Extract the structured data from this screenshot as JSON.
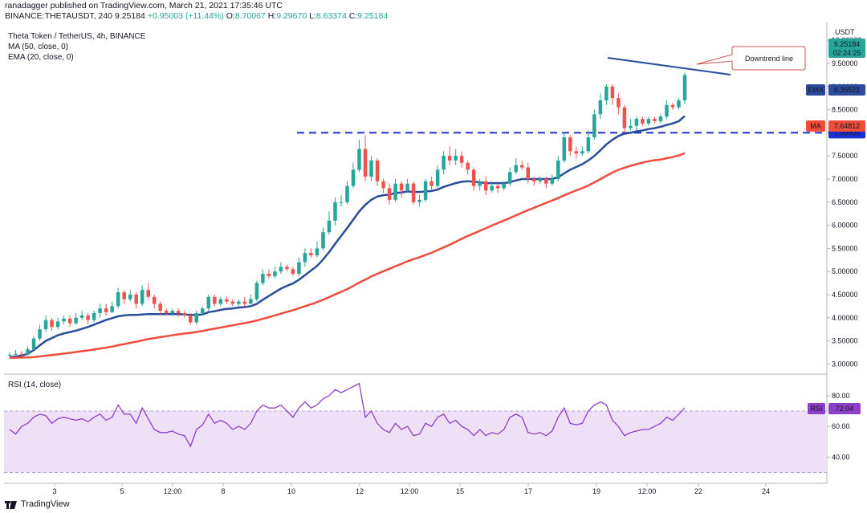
{
  "publish_line": "ranadagger published on TradingView.com, March 21, 2021 17:35:46 UTC",
  "ohlc": {
    "symbol": "BINANCE:THETAUSDT, 240",
    "last": "9.25184",
    "change": "+0.95003 (+11.44%)",
    "o_label": "O:",
    "o": "8.70067",
    "h_label": "H:",
    "h": "9.29670",
    "l_label": "L:",
    "l": "8.63374",
    "c_label": "C:",
    "c": "9.25184"
  },
  "legend": {
    "instrument": "Theta Token / TetherUS, 4h, BINANCE",
    "ma": "MA (50, close, 0)",
    "ema": "EMA (20, close, 0)",
    "rsi": "RSI (14, close)"
  },
  "annotation": {
    "text": "Downtrend line"
  },
  "badges": {
    "price": "9.25184",
    "countdown": "02:24:25",
    "ema_tag": "EMA",
    "ema_value": "8.36521",
    "level_value": "7.99900",
    "ma_tag": "MA",
    "ma_value": "7.64812",
    "rsi_tag": "RSI",
    "rsi_value": "72.04"
  },
  "footer": {
    "brand": "TradingView"
  },
  "colors": {
    "up": "#26a69a",
    "down": "#ef5350",
    "ema": "#2a4c9b",
    "ma": "#f04c3c",
    "level": "#1e2fd4",
    "rsi": "#8e3fc8",
    "rsi_band": "#ede0f7",
    "trendline": "#2a4c9b"
  },
  "chart_data": [
    {
      "type": "candlestick",
      "title": "",
      "y_axis": {
        "currency": "USDT",
        "ticks": [
          "10.00000",
          "9.50000",
          "9.00000",
          "8.50000",
          "8.00000",
          "7.50000",
          "7.00000",
          "6.50000",
          "6.00000",
          "5.50000",
          "5.00000",
          "4.50000",
          "4.00000",
          "3.50000",
          "3.00000"
        ],
        "range": [
          2.85,
          10.35
        ]
      },
      "x_axis": {
        "ticks": [
          "3",
          "5",
          "12:00",
          "8",
          "10",
          "12",
          "12:00",
          "15",
          "17",
          "19",
          "12:00",
          "22",
          "24"
        ]
      },
      "horizontal_level": 7.999,
      "downtrend_line": [
        {
          "x": "Mar 19 06:00",
          "y": 9.0
        },
        {
          "x": "Mar 22 20:00",
          "y": 8.65
        }
      ],
      "candles": [
        [
          3.18,
          3.2,
          3.25,
          3.15
        ],
        [
          3.2,
          3.22,
          3.3,
          3.15
        ],
        [
          3.22,
          3.2,
          3.28,
          3.12
        ],
        [
          3.2,
          3.32,
          3.38,
          3.18
        ],
        [
          3.32,
          3.55,
          3.6,
          3.3
        ],
        [
          3.55,
          3.75,
          3.85,
          3.5
        ],
        [
          3.75,
          3.95,
          4.05,
          3.7
        ],
        [
          3.95,
          3.8,
          4.0,
          3.72
        ],
        [
          3.8,
          3.92,
          4.0,
          3.75
        ],
        [
          3.92,
          3.98,
          4.05,
          3.85
        ],
        [
          3.98,
          3.88,
          4.05,
          3.8
        ],
        [
          3.88,
          4.0,
          4.1,
          3.85
        ],
        [
          4.0,
          4.05,
          4.15,
          3.95
        ],
        [
          4.05,
          3.95,
          4.1,
          3.85
        ],
        [
          3.95,
          4.1,
          4.15,
          3.9
        ],
        [
          4.1,
          4.2,
          4.3,
          4.0
        ],
        [
          4.2,
          4.12,
          4.3,
          4.05
        ],
        [
          4.12,
          4.25,
          4.35,
          4.1
        ],
        [
          4.25,
          4.55,
          4.65,
          4.2
        ],
        [
          4.55,
          4.4,
          4.6,
          4.3
        ],
        [
          4.4,
          4.5,
          4.6,
          4.35
        ],
        [
          4.5,
          4.3,
          4.55,
          4.2
        ],
        [
          4.3,
          4.6,
          4.7,
          4.25
        ],
        [
          4.6,
          4.45,
          4.75,
          4.4
        ],
        [
          4.45,
          4.3,
          4.5,
          4.2
        ],
        [
          4.3,
          4.15,
          4.35,
          4.05
        ],
        [
          4.15,
          4.1,
          4.2,
          4.05
        ],
        [
          4.1,
          4.15,
          4.2,
          4.05
        ],
        [
          4.15,
          4.1,
          4.2,
          4.02
        ],
        [
          4.1,
          4.05,
          4.15,
          4.0
        ],
        [
          4.05,
          3.9,
          4.1,
          3.85
        ],
        [
          3.9,
          4.1,
          4.15,
          3.85
        ],
        [
          4.1,
          4.2,
          4.25,
          4.05
        ],
        [
          4.2,
          4.45,
          4.5,
          4.15
        ],
        [
          4.45,
          4.3,
          4.5,
          4.25
        ],
        [
          4.3,
          4.4,
          4.45,
          4.25
        ],
        [
          4.4,
          4.35,
          4.45,
          4.3
        ],
        [
          4.35,
          4.3,
          4.4,
          4.25
        ],
        [
          4.3,
          4.35,
          4.4,
          4.25
        ],
        [
          4.35,
          4.3,
          4.45,
          4.25
        ],
        [
          4.3,
          4.4,
          4.5,
          4.3
        ],
        [
          4.4,
          4.75,
          4.8,
          4.35
        ],
        [
          4.75,
          4.95,
          5.05,
          4.7
        ],
        [
          4.95,
          4.9,
          5.05,
          4.85
        ],
        [
          4.9,
          5.0,
          5.1,
          4.85
        ],
        [
          5.0,
          5.1,
          5.2,
          4.95
        ],
        [
          5.1,
          5.05,
          5.15,
          5.0
        ],
        [
          5.05,
          4.95,
          5.1,
          4.9
        ],
        [
          4.95,
          5.2,
          5.3,
          4.9
        ],
        [
          5.2,
          5.4,
          5.5,
          5.1
        ],
        [
          5.4,
          5.35,
          5.5,
          5.3
        ],
        [
          5.35,
          5.5,
          5.65,
          5.3
        ],
        [
          5.5,
          5.85,
          5.95,
          5.45
        ],
        [
          5.85,
          6.1,
          6.3,
          5.8
        ],
        [
          6.1,
          6.5,
          6.6,
          6.0
        ],
        [
          6.5,
          6.5,
          6.65,
          6.4
        ],
        [
          6.5,
          6.85,
          6.95,
          6.45
        ],
        [
          6.85,
          7.2,
          7.35,
          6.8
        ],
        [
          7.2,
          7.65,
          7.85,
          7.15
        ],
        [
          7.65,
          7.05,
          7.95,
          6.95
        ],
        [
          7.05,
          7.4,
          7.5,
          6.95
        ],
        [
          7.4,
          6.95,
          7.45,
          6.85
        ],
        [
          6.95,
          6.8,
          7.0,
          6.7
        ],
        [
          6.8,
          6.55,
          6.9,
          6.45
        ],
        [
          6.55,
          6.9,
          7.0,
          6.5
        ],
        [
          6.9,
          6.75,
          6.95,
          6.6
        ],
        [
          6.75,
          6.9,
          7.0,
          6.7
        ],
        [
          6.9,
          6.5,
          6.95,
          6.45
        ],
        [
          6.5,
          6.55,
          6.65,
          6.4
        ],
        [
          6.55,
          6.95,
          7.0,
          6.5
        ],
        [
          6.95,
          6.85,
          7.05,
          6.75
        ],
        [
          6.85,
          7.2,
          7.3,
          6.8
        ],
        [
          7.2,
          7.5,
          7.6,
          7.1
        ],
        [
          7.5,
          7.4,
          7.7,
          7.3
        ],
        [
          7.4,
          7.5,
          7.65,
          7.3
        ],
        [
          7.5,
          7.35,
          7.6,
          7.25
        ],
        [
          7.35,
          7.2,
          7.4,
          7.1
        ],
        [
          7.2,
          6.85,
          7.25,
          6.75
        ],
        [
          6.85,
          6.95,
          7.0,
          6.75
        ],
        [
          6.95,
          6.75,
          7.05,
          6.65
        ],
        [
          6.75,
          6.85,
          6.95,
          6.7
        ],
        [
          6.85,
          6.8,
          6.9,
          6.7
        ],
        [
          6.8,
          6.9,
          6.95,
          6.75
        ],
        [
          6.9,
          7.15,
          7.25,
          6.85
        ],
        [
          7.15,
          7.3,
          7.45,
          7.1
        ],
        [
          7.3,
          7.25,
          7.4,
          7.2
        ],
        [
          7.25,
          7.0,
          7.35,
          6.9
        ],
        [
          7.0,
          6.95,
          7.05,
          6.85
        ],
        [
          6.95,
          7.0,
          7.05,
          6.9
        ],
        [
          7.0,
          6.9,
          7.05,
          6.8
        ],
        [
          6.9,
          7.0,
          7.1,
          6.85
        ],
        [
          7.0,
          7.4,
          7.5,
          6.95
        ],
        [
          7.4,
          7.9,
          8.0,
          7.35
        ],
        [
          7.9,
          7.6,
          7.95,
          7.5
        ],
        [
          7.6,
          7.55,
          7.7,
          7.45
        ],
        [
          7.55,
          7.6,
          7.7,
          7.5
        ],
        [
          7.6,
          7.9,
          8.05,
          7.55
        ],
        [
          7.9,
          8.4,
          8.5,
          7.85
        ],
        [
          8.4,
          8.7,
          8.85,
          8.3
        ],
        [
          8.7,
          9.0,
          9.05,
          8.6
        ],
        [
          9.0,
          8.75,
          9.05,
          8.6
        ],
        [
          8.75,
          8.55,
          8.85,
          8.4
        ],
        [
          8.55,
          8.1,
          8.6,
          8.0
        ],
        [
          8.1,
          8.15,
          8.3,
          8.05
        ],
        [
          8.15,
          8.3,
          8.35,
          8.05
        ],
        [
          8.3,
          8.2,
          8.35,
          8.15
        ],
        [
          8.2,
          8.3,
          8.35,
          8.15
        ],
        [
          8.3,
          8.25,
          8.35,
          8.2
        ],
        [
          8.25,
          8.35,
          8.4,
          8.2
        ],
        [
          8.35,
          8.6,
          8.7,
          8.3
        ],
        [
          8.6,
          8.55,
          8.65,
          8.5
        ],
        [
          8.55,
          8.7,
          8.75,
          8.5
        ],
        [
          8.7,
          9.25,
          9.3,
          8.63
        ]
      ],
      "ema20": [
        3.15,
        3.16,
        3.18,
        3.22,
        3.3,
        3.4,
        3.5,
        3.56,
        3.62,
        3.66,
        3.69,
        3.72,
        3.76,
        3.8,
        3.85,
        3.9,
        3.95,
        3.99,
        4.03,
        4.05,
        4.06,
        4.06,
        4.07,
        4.08,
        4.08,
        4.08,
        4.08,
        4.08,
        4.08,
        4.07,
        4.06,
        4.06,
        4.07,
        4.12,
        4.14,
        4.17,
        4.19,
        4.2,
        4.22,
        4.23,
        4.25,
        4.3,
        4.39,
        4.47,
        4.55,
        4.63,
        4.69,
        4.74,
        4.82,
        4.92,
        5.02,
        5.12,
        5.26,
        5.42,
        5.6,
        5.77,
        5.94,
        6.12,
        6.3,
        6.44,
        6.55,
        6.62,
        6.65,
        6.66,
        6.7,
        6.71,
        6.73,
        6.72,
        6.72,
        6.73,
        6.74,
        6.77,
        6.83,
        6.87,
        6.91,
        6.94,
        6.95,
        6.94,
        6.93,
        6.91,
        6.91,
        6.91,
        6.91,
        6.93,
        6.97,
        7.0,
        7.0,
        7.0,
        7.0,
        7.0,
        7.0,
        7.04,
        7.12,
        7.2,
        7.26,
        7.32,
        7.4,
        7.5,
        7.62,
        7.75,
        7.85,
        7.93,
        7.98,
        8.0,
        8.03,
        8.05,
        8.08,
        8.1,
        8.13,
        8.17,
        8.2,
        8.25,
        8.36
      ]
    },
    {
      "type": "line",
      "title": "",
      "y_axis": {
        "ticks": [
          "80.00",
          "60.00",
          "40.00"
        ],
        "range": [
          25,
          92
        ]
      },
      "band": [
        30,
        70
      ],
      "rsi": [
        58,
        55,
        60,
        62,
        66,
        68,
        67,
        62,
        65,
        66,
        65,
        64,
        65,
        63,
        66,
        68,
        64,
        66,
        74,
        68,
        68,
        62,
        72,
        65,
        58,
        56,
        56,
        57,
        55,
        54,
        47,
        58,
        61,
        68,
        62,
        64,
        62,
        58,
        60,
        58,
        62,
        70,
        74,
        72,
        72,
        74,
        70,
        66,
        72,
        76,
        72,
        74,
        78,
        80,
        84,
        82,
        84,
        86,
        88,
        66,
        70,
        62,
        58,
        56,
        62,
        58,
        60,
        54,
        55,
        62,
        60,
        66,
        68,
        62,
        64,
        60,
        58,
        54,
        58,
        54,
        56,
        55,
        58,
        66,
        68,
        66,
        56,
        55,
        56,
        54,
        57,
        66,
        72,
        62,
        61,
        62,
        70,
        74,
        76,
        74,
        64,
        60,
        54,
        56,
        57,
        58,
        58,
        60,
        62,
        66,
        64,
        68,
        72
      ]
    }
  ]
}
